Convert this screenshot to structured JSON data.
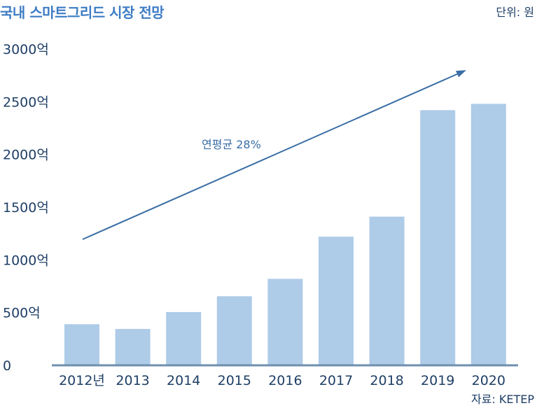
{
  "title": "국내 스마트그리드 시장 전망",
  "unit_label": "단위: 원",
  "source_label": "자료: KETEP",
  "colors": {
    "title": "#3d7cc4",
    "bar": "#aecbe8",
    "axis": "#6f8fae",
    "text": "#1f3f66",
    "arrow": "#3a6ea5"
  },
  "chart_data": {
    "type": "bar",
    "title": "국내 스마트그리드 시장 전망",
    "xlabel": "",
    "ylabel": "",
    "categories": [
      "2012년",
      "2013",
      "2014",
      "2015",
      "2016",
      "2017",
      "2018",
      "2019",
      "2020"
    ],
    "values": [
      390,
      345,
      505,
      655,
      820,
      1220,
      1410,
      2420,
      2480
    ],
    "ylim": [
      0,
      3000
    ],
    "yticks": [
      0,
      500,
      1000,
      1500,
      2000,
      2500,
      3000
    ],
    "ytick_labels": [
      "0",
      "500억",
      "1000억",
      "1500억",
      "2000억",
      "2500억",
      "3000억"
    ],
    "grid": false,
    "annotations": [
      {
        "type": "trend-arrow",
        "label": "연평균 28%"
      }
    ]
  }
}
